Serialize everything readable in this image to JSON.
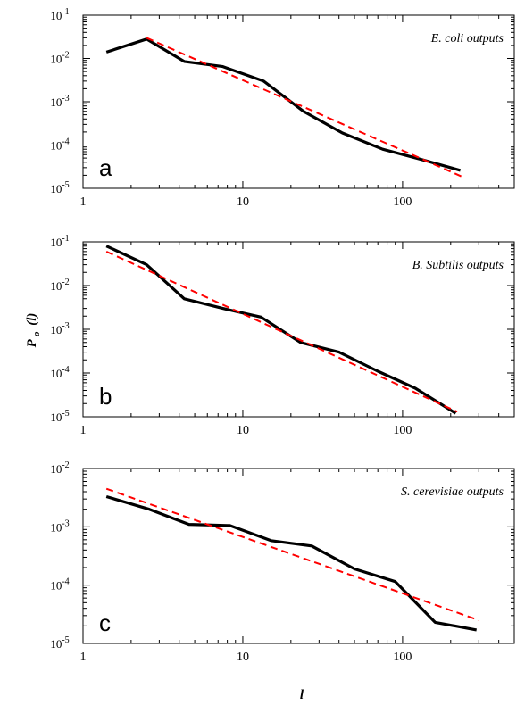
{
  "y_axis_label": "P",
  "y_axis_label_sub": "o",
  "y_axis_label_arg": "(l)",
  "x_axis_label": "l",
  "chart_data": [
    {
      "type": "line",
      "panel_letter": "a",
      "annotation": "E. coli outputs",
      "x_scale": "log",
      "y_scale": "log",
      "xlim": [
        1,
        500
      ],
      "ylim": [
        1e-05,
        0.1
      ],
      "x_ticks": [
        1,
        10,
        100
      ],
      "x_tick_labels": [
        "1",
        "10",
        "100"
      ],
      "y_ticks": [
        1e-05,
        0.0001,
        0.001,
        0.01,
        0.1
      ],
      "y_tick_labels": [
        [
          "10",
          "-5"
        ],
        [
          "10",
          "-4"
        ],
        [
          "10",
          "-3"
        ],
        [
          "10",
          "-2"
        ],
        [
          "10",
          "-1"
        ]
      ],
      "series": [
        {
          "style": "data",
          "color": "#000000",
          "x": [
            1.4,
            2.5,
            4.3,
            7.5,
            13.5,
            24,
            42,
            75,
            135,
            230
          ],
          "y": [
            0.014,
            0.028,
            0.0085,
            0.0065,
            0.003,
            0.0006,
            0.00019,
            8e-05,
            4.5e-05,
            2.6e-05
          ]
        },
        {
          "style": "fit",
          "color": "#ff0000",
          "x": [
            2.5,
            240
          ],
          "y": [
            0.03,
            1.8e-05
          ]
        }
      ]
    },
    {
      "type": "line",
      "panel_letter": "b",
      "annotation": "B. Subtilis outputs",
      "x_scale": "log",
      "y_scale": "log",
      "xlim": [
        1,
        500
      ],
      "ylim": [
        1e-05,
        0.1
      ],
      "x_ticks": [
        1,
        10,
        100
      ],
      "x_tick_labels": [
        "1",
        "10",
        "100"
      ],
      "y_ticks": [
        1e-05,
        0.0001,
        0.001,
        0.01,
        0.1
      ],
      "y_tick_labels": [
        [
          "10",
          "-5"
        ],
        [
          "10",
          "-4"
        ],
        [
          "10",
          "-3"
        ],
        [
          "10",
          "-2"
        ],
        [
          "10",
          "-1"
        ]
      ],
      "series": [
        {
          "style": "data",
          "color": "#000000",
          "x": [
            1.4,
            2.5,
            4.3,
            7.5,
            13,
            23,
            40,
            70,
            120,
            215
          ],
          "y": [
            0.08,
            0.03,
            0.005,
            0.003,
            0.0019,
            0.0005,
            0.0003,
            0.00011,
            4.5e-05,
            1.2e-05
          ]
        },
        {
          "style": "fit",
          "color": "#ff0000",
          "x": [
            1.4,
            220
          ],
          "y": [
            0.06,
            1.3e-05
          ]
        }
      ]
    },
    {
      "type": "line",
      "panel_letter": "c",
      "annotation": "S. cerevisiae outputs",
      "x_scale": "log",
      "y_scale": "log",
      "xlim": [
        1,
        500
      ],
      "ylim": [
        1e-05,
        0.01
      ],
      "x_ticks": [
        1,
        10,
        100
      ],
      "x_tick_labels": [
        "1",
        "10",
        "100"
      ],
      "y_ticks": [
        1e-05,
        0.0001,
        0.001,
        0.01
      ],
      "y_tick_labels": [
        [
          "10",
          "-5"
        ],
        [
          "10",
          "-4"
        ],
        [
          "10",
          "-3"
        ],
        [
          "10",
          "-2"
        ]
      ],
      "series": [
        {
          "style": "data",
          "color": "#000000",
          "x": [
            1.4,
            2.6,
            4.6,
            8.3,
            15,
            27,
            50,
            90,
            160,
            290
          ],
          "y": [
            0.0033,
            0.002,
            0.0011,
            0.00105,
            0.00058,
            0.00047,
            0.00019,
            0.000115,
            2.3e-05,
            1.7e-05
          ]
        },
        {
          "style": "fit",
          "color": "#ff0000",
          "x": [
            1.4,
            300
          ],
          "y": [
            0.0045,
            2.5e-05
          ]
        }
      ]
    }
  ]
}
